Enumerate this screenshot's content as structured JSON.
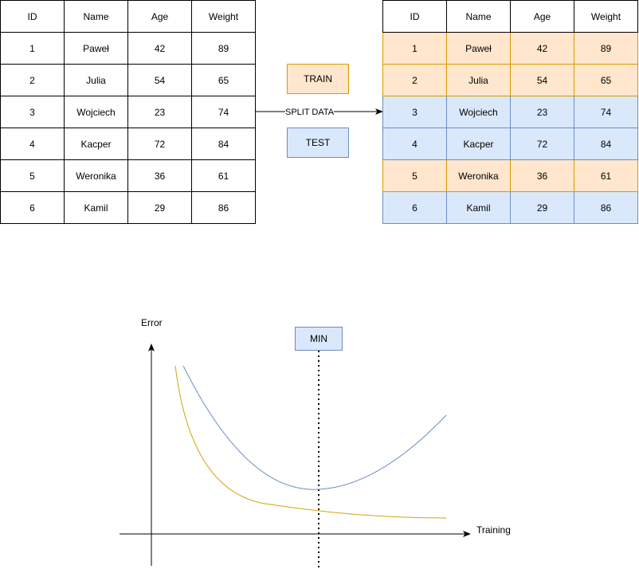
{
  "tables": {
    "headers": [
      "ID",
      "Name",
      "Age",
      "Weight"
    ],
    "rows": [
      [
        "1",
        "Paweł",
        "42",
        "89"
      ],
      [
        "2",
        "Julia",
        "54",
        "65"
      ],
      [
        "3",
        "Wojciech",
        "23",
        "74"
      ],
      [
        "4",
        "Kacper",
        "72",
        "84"
      ],
      [
        "5",
        "Weronika",
        "36",
        "61"
      ],
      [
        "6",
        "Kamil",
        "29",
        "86"
      ]
    ],
    "split": [
      "train",
      "train",
      "test",
      "test",
      "train",
      "test"
    ]
  },
  "legend": {
    "train_label": "TRAIN",
    "test_label": "TEST"
  },
  "arrow_label": "SPLIT DATA",
  "chart": {
    "y_label": "Error",
    "x_label": "Training",
    "min_label": "MIN"
  },
  "colors": {
    "train_fill": "#ffe6cc",
    "train_border": "#d79b00",
    "test_fill": "#dae8fc",
    "test_border": "#6c8ebf",
    "train_curve": "#d6a20b",
    "test_curve": "#6c8ebf"
  }
}
